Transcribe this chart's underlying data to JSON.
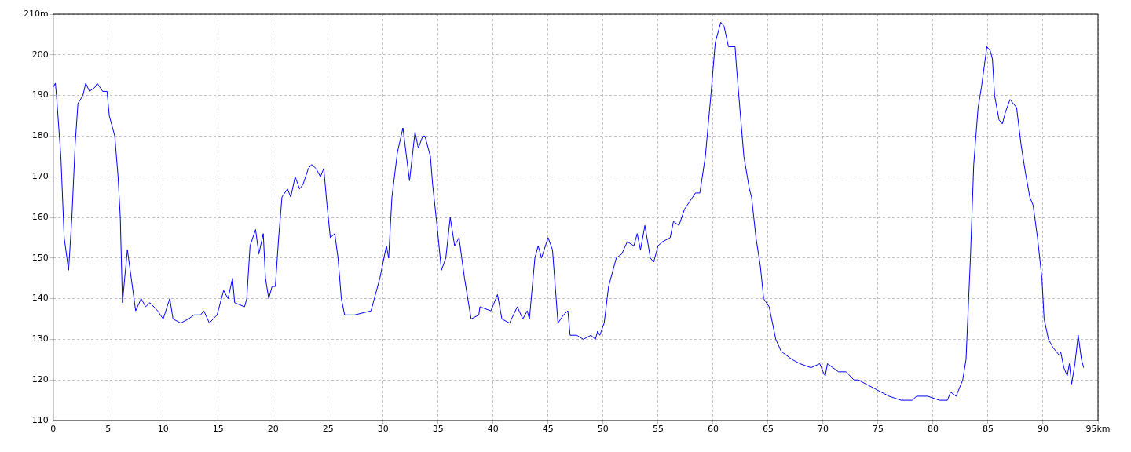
{
  "chart_data": {
    "type": "line",
    "xlim": [
      0,
      95
    ],
    "ylim": [
      110,
      210
    ],
    "xticks": [
      0,
      5,
      10,
      15,
      20,
      25,
      30,
      35,
      40,
      45,
      50,
      55,
      60,
      65,
      70,
      75,
      80,
      85,
      90,
      {
        "value": 95,
        "label": "95km"
      }
    ],
    "yticks": [
      110,
      120,
      130,
      140,
      150,
      160,
      170,
      180,
      190,
      200,
      {
        "value": 210,
        "label": "210m"
      }
    ],
    "grid": true,
    "legend": false,
    "marker": "none",
    "line_style": "solid",
    "series": [
      {
        "color": "#0000ff",
        "x": [
          0,
          0.2,
          0.3,
          0.7,
          1.0,
          1.4,
          1.7,
          2.0,
          2.25,
          2.7,
          2.96,
          3.3,
          3.8,
          4.0,
          4.5,
          4.9,
          5.1,
          5.6,
          5.9,
          6.1,
          6.3,
          6.5,
          6.75,
          7.1,
          7.5,
          8.0,
          8.4,
          8.8,
          9.5,
          10.0,
          10.6,
          10.9,
          11.6,
          12.3,
          12.8,
          13.4,
          13.7,
          14.2,
          14.9,
          15.5,
          15.9,
          16.3,
          16.5,
          17.4,
          17.6,
          17.9,
          18.4,
          18.7,
          19.1,
          19.3,
          19.6,
          19.9,
          20.2,
          20.5,
          20.8,
          21.3,
          21.6,
          22.0,
          22.4,
          22.7,
          23.2,
          23.5,
          23.9,
          24.3,
          24.6,
          24.9,
          25.2,
          25.6,
          25.9,
          26.2,
          26.5,
          27.4,
          28.9,
          29.2,
          29.7,
          30.3,
          30.5,
          30.8,
          31.3,
          31.8,
          32.4,
          32.9,
          33.2,
          33.6,
          33.8,
          34.3,
          34.5,
          34.9,
          35.3,
          35.7,
          36.1,
          36.5,
          36.9,
          37.4,
          38.0,
          38.7,
          38.8,
          39.8,
          40.4,
          40.8,
          41.5,
          42.2,
          42.7,
          43.1,
          43.3,
          43.8,
          44.1,
          44.4,
          45.0,
          45.4,
          45.9,
          46.4,
          46.8,
          47.0,
          47.6,
          48.2,
          48.9,
          49.3,
          49.5,
          49.7,
          50.1,
          50.5,
          51.2,
          51.7,
          52.2,
          52.8,
          53.1,
          53.4,
          53.8,
          54.3,
          54.6,
          55.0,
          55.4,
          56.1,
          56.4,
          56.9,
          57.4,
          57.9,
          58.4,
          58.8,
          59.3,
          59.8,
          60.2,
          60.7,
          61.0,
          61.4,
          62.0,
          62.1,
          62.4,
          62.8,
          63.3,
          63.5,
          63.9,
          64.3,
          64.6,
          65.1,
          65.7,
          66.2,
          66.7,
          67.2,
          67.9,
          68.9,
          69.7,
          70.0,
          70.2,
          70.4,
          71.4,
          72.1,
          72.8,
          73.2,
          73.9,
          74.6,
          75.3,
          76.0,
          77.1,
          78.1,
          78.5,
          79.5,
          80.6,
          81.3,
          81.6,
          82.1,
          82.7,
          83.0,
          83.4,
          83.7,
          84.1,
          84.4,
          84.9,
          85.2,
          85.4,
          85.6,
          86.0,
          86.3,
          86.6,
          87.0,
          87.6,
          88.0,
          88.4,
          88.8,
          89.1,
          89.5,
          89.9,
          90.1,
          90.5,
          90.9,
          91.5,
          91.6,
          91.9,
          92.2,
          92.4,
          92.6,
          92.9,
          93.2,
          93.5,
          93.7
        ],
        "values": [
          192,
          193,
          190,
          175,
          155,
          147,
          160,
          178,
          188,
          190,
          193,
          191,
          192,
          193,
          191,
          191,
          185,
          180,
          170,
          160,
          139,
          145,
          152,
          145,
          137,
          140,
          138,
          139,
          137,
          135,
          140,
          135,
          134,
          135,
          136,
          136,
          137,
          134,
          136,
          142,
          140,
          145,
          139,
          138,
          140,
          153,
          157,
          151,
          156,
          145,
          140,
          143,
          143,
          155,
          165,
          167,
          165,
          170,
          167,
          168,
          172,
          173,
          172,
          170,
          172,
          163,
          155,
          156,
          150,
          140,
          136,
          136,
          137,
          140,
          145,
          153,
          150,
          165,
          176,
          182,
          169,
          181,
          177,
          180,
          180,
          175,
          168,
          158,
          147,
          150,
          160,
          153,
          155,
          145,
          135,
          136,
          138,
          137,
          141,
          135,
          134,
          138,
          135,
          137,
          135,
          150,
          153,
          150,
          155,
          152,
          134,
          136,
          137,
          131,
          131,
          130,
          131,
          130,
          132,
          131,
          134,
          143,
          150,
          151,
          154,
          153,
          156,
          152,
          158,
          150,
          149,
          153,
          154,
          155,
          159,
          158,
          162,
          164,
          166,
          166,
          175,
          190,
          203,
          208,
          207,
          202,
          202,
          198,
          188,
          175,
          167,
          165,
          155,
          148,
          140,
          138,
          130,
          127,
          126,
          125,
          124,
          123,
          124,
          122,
          121,
          124,
          122,
          122,
          120,
          120,
          119,
          118,
          117,
          116,
          115,
          115,
          116,
          116,
          115,
          115,
          117,
          116,
          120,
          125,
          150,
          173,
          187,
          192,
          202,
          201,
          199,
          190,
          184,
          183,
          186,
          189,
          187,
          178,
          171,
          165,
          163,
          155,
          145,
          135,
          130,
          128,
          126,
          127,
          123,
          121,
          124,
          119,
          124,
          131,
          125,
          123
        ]
      }
    ]
  }
}
